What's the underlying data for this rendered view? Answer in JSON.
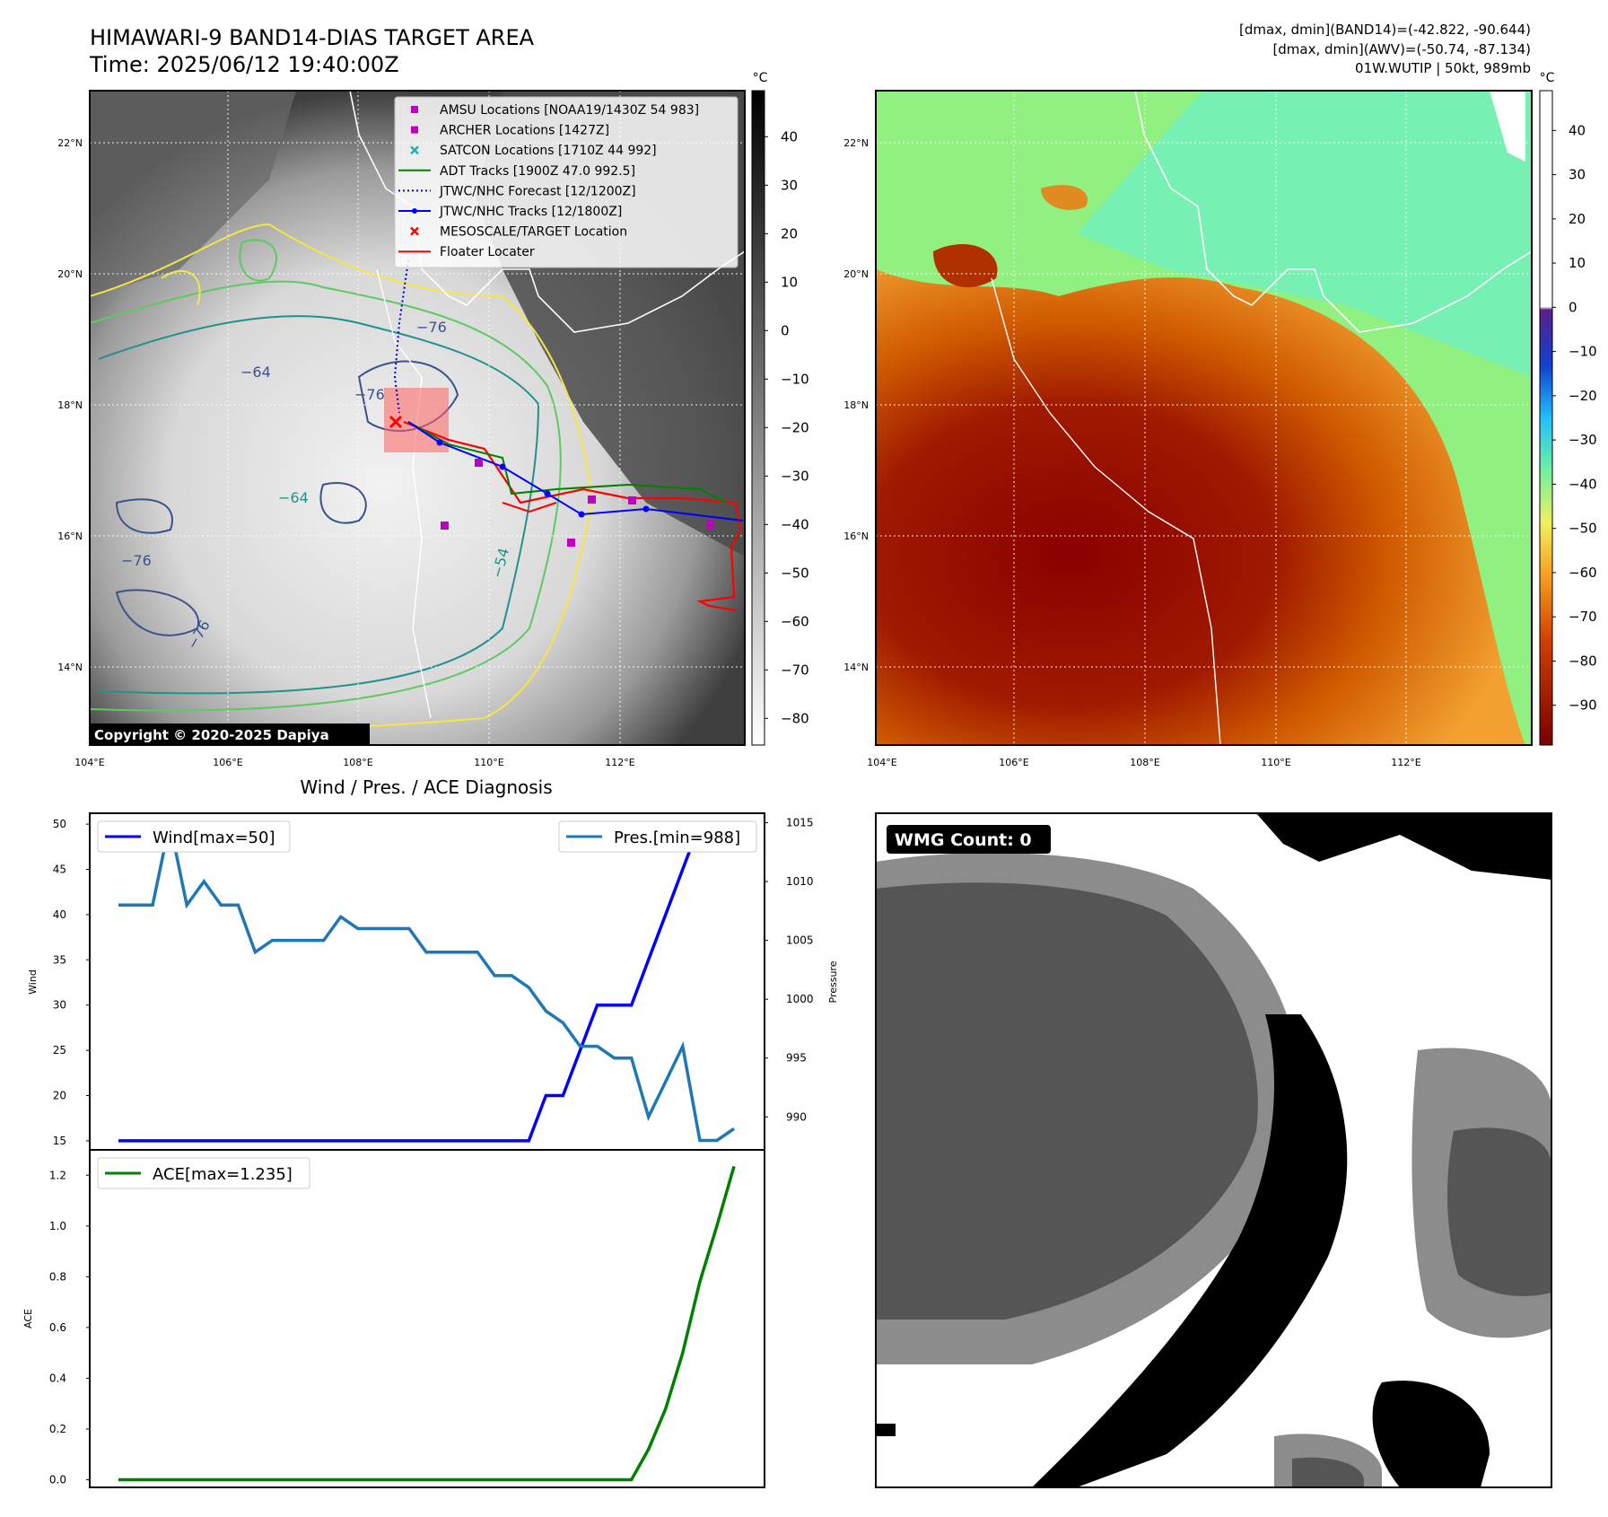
{
  "header": {
    "title": "HIMAWARI-9 BAND14-DIAS TARGET AREA",
    "time": "Time: 2025/06/12 19:40:00Z",
    "info_line1": "[dmax, dmin](BAND14)=(-42.822, -90.644)",
    "info_line2": "[dmax, dmin](AWV)=(-50.74, -87.134)",
    "info_line3": "01W.WUTIP | 50kt, 989mb"
  },
  "ir_map": {
    "lon_ticks": [
      "104°E",
      "106°E",
      "108°E",
      "110°E",
      "112°E"
    ],
    "lat_ticks": [
      "22°N",
      "20°N",
      "18°N",
      "16°N",
      "14°N"
    ],
    "lon_range": [
      104,
      114
    ],
    "lat_range": [
      12.8,
      22.8
    ],
    "copyright": "Copyright © 2020-2025 Dapiya",
    "contour_labels": [
      "−76",
      "−64",
      "−76",
      "−64",
      "−54",
      "−76",
      "−64",
      "−54",
      "−76",
      "−64",
      "−76"
    ],
    "legend": [
      {
        "label": "AMSU Locations [NOAA19/1430Z 54 983]",
        "marker": "square",
        "color": "#c000c0"
      },
      {
        "label": "ARCHER Locations [1427Z]",
        "marker": "square",
        "color": "#c000c0"
      },
      {
        "label": "SATCON Locations [1710Z 44 992]",
        "marker": "x",
        "color": "#20b0b0"
      },
      {
        "label": "ADT Tracks [1900Z 47.0 992.5]",
        "marker": "line",
        "color": "#008000"
      },
      {
        "label": "JTWC/NHC Forecast [12/1200Z]",
        "marker": "dotted",
        "color": "#0000cc"
      },
      {
        "label": "JTWC/NHC Tracks [12/1800Z]",
        "marker": "line-dot",
        "color": "#0000ff"
      },
      {
        "label": "MESOSCALE/TARGET Location",
        "marker": "x",
        "color": "#ff0000"
      },
      {
        "label": "Floater Locater",
        "marker": "line",
        "color": "#ff0000"
      }
    ],
    "colorbar": {
      "unit": "°C",
      "ticks": [
        "40",
        "30",
        "20",
        "10",
        "0",
        "−10",
        "−20",
        "−30",
        "−40",
        "−50",
        "−60",
        "−70",
        "−80"
      ]
    }
  },
  "awv_map": {
    "lon_ticks": [
      "104°E",
      "106°E",
      "108°E",
      "110°E",
      "112°E"
    ],
    "lat_ticks": [
      "22°N",
      "20°N",
      "18°N",
      "16°N",
      "14°N"
    ],
    "colorbar": {
      "unit": "°C",
      "ticks": [
        "40",
        "30",
        "20",
        "10",
        "0",
        "−10",
        "−20",
        "−30",
        "−40",
        "−50",
        "−60",
        "−70",
        "−80",
        "−90"
      ]
    }
  },
  "wmg": {
    "label": "WMG Count: 0"
  },
  "chart_data": [
    {
      "type": "line",
      "title": "Wind / Pres. / ACE Diagnosis",
      "ylabel": "Wind",
      "y2label": "Pressure",
      "ylim": [
        14,
        51.2
      ],
      "y2lim": [
        987.2,
        1015.8
      ],
      "yticks": [
        "50",
        "45",
        "40",
        "35",
        "30",
        "25",
        "20",
        "15"
      ],
      "y2ticks": [
        "1015",
        "1010",
        "1005",
        "1000",
        "995",
        "990"
      ],
      "series": [
        {
          "name": "Wind[max=50]",
          "axis": "left",
          "color": "#0000ff",
          "values": [
            15,
            15,
            15,
            15,
            15,
            15,
            15,
            15,
            15,
            15,
            15,
            15,
            15,
            15,
            15,
            15,
            15,
            15,
            15,
            15,
            15,
            15,
            15,
            15,
            15,
            20,
            20,
            25,
            30,
            30,
            30,
            35,
            40,
            45,
            50,
            50,
            50
          ]
        },
        {
          "name": "Pres.[min=988]",
          "axis": "right",
          "color": "#1f77b4",
          "values": [
            1008,
            1008,
            1008,
            1015,
            1008,
            1010,
            1008,
            1008,
            1004,
            1005,
            1005,
            1005,
            1005,
            1007,
            1006,
            1006,
            1006,
            1006,
            1004,
            1004,
            1004,
            1004,
            1002,
            1002,
            1001,
            999,
            998,
            996,
            996,
            995,
            995,
            990,
            993,
            996,
            988,
            988,
            989
          ]
        }
      ]
    },
    {
      "type": "line",
      "ylabel": "ACE",
      "ylim": [
        -0.03,
        1.3
      ],
      "yticks": [
        "1.2",
        "1.0",
        "0.8",
        "0.6",
        "0.4",
        "0.2",
        "0.0"
      ],
      "series": [
        {
          "name": "ACE[max=1.235]",
          "color": "#008000",
          "values": [
            0,
            0,
            0,
            0,
            0,
            0,
            0,
            0,
            0,
            0,
            0,
            0,
            0,
            0,
            0,
            0,
            0,
            0,
            0,
            0,
            0,
            0,
            0,
            0,
            0,
            0,
            0,
            0,
            0,
            0,
            0,
            0.12,
            0.28,
            0.5,
            0.78,
            1.0,
            1.235
          ]
        }
      ]
    }
  ]
}
